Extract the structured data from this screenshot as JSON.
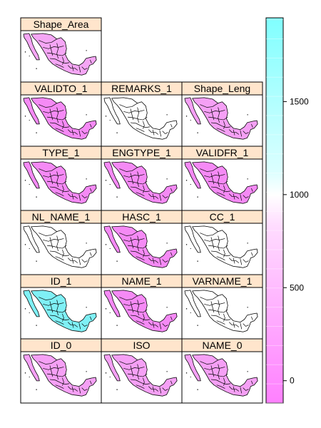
{
  "chart_data": {
    "type": "heatmap",
    "title": "",
    "description_layout": "trellis of map panels sharing one color key",
    "panels": [
      {
        "label": "Shape_Area",
        "fill": "#f5a6f5"
      },
      {
        "label": "VALIDTO_1",
        "fill": "#f58af5"
      },
      {
        "label": "REMARKS_1",
        "fill": "#ffffff"
      },
      {
        "label": "Shape_Leng",
        "fill": "#f5a0f5"
      },
      {
        "label": "TYPE_1",
        "fill": "#f58af5"
      },
      {
        "label": "ENGTYPE_1",
        "fill": "#f58af5"
      },
      {
        "label": "VALIDFR_1",
        "fill": "#f58af5"
      },
      {
        "label": "NL_NAME_1",
        "fill": "#ffffff"
      },
      {
        "label": "HASC_1",
        "fill": "#f58af5"
      },
      {
        "label": "CC_1",
        "fill": "#ffffff"
      },
      {
        "label": "ID_1",
        "fill": "#7ff0f5"
      },
      {
        "label": "NAME_1",
        "fill": "#f58af5"
      },
      {
        "label": "VARNAME_1",
        "fill": "#ffffff"
      },
      {
        "label": "ID_0",
        "fill": "#f5a0f5"
      },
      {
        "label": "ISO",
        "fill": "#f5a0f5"
      },
      {
        "label": "NAME_0",
        "fill": "#f5a0f5"
      }
    ],
    "colorkey": {
      "ticks": [
        0,
        500,
        1000,
        1500
      ],
      "range": [
        -120,
        1950
      ],
      "low_color": "#ff80ff",
      "high_color": "#80ffff"
    },
    "colors": {
      "strip_bg": "#ffe5cc",
      "border": "#000000",
      "outline": "#000000"
    }
  }
}
